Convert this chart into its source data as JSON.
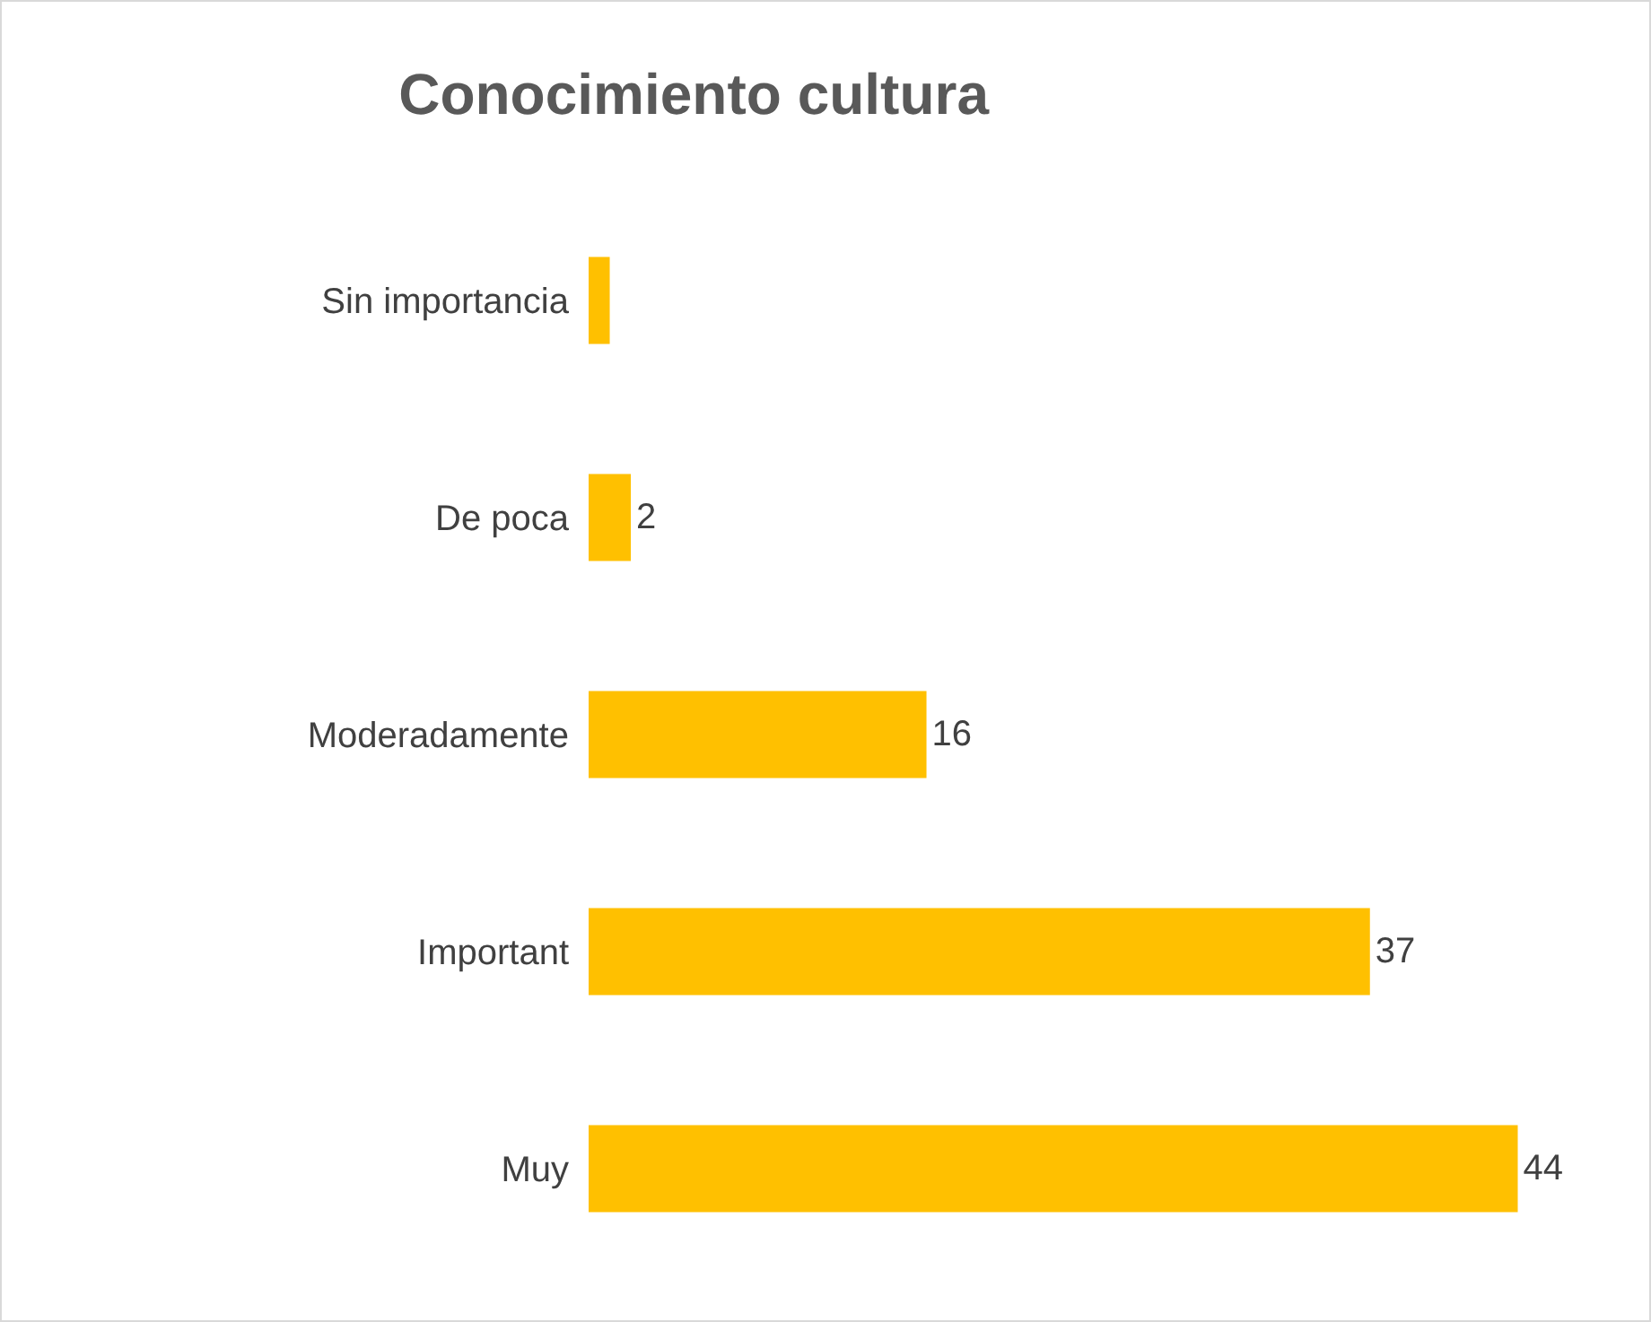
{
  "chart_data": {
    "type": "bar",
    "title": "Conocimiento cultura",
    "orientation": "horizontal",
    "categories": [
      "Sin importancia",
      "De poca",
      "Moderadamente",
      "Important",
      "Muy"
    ],
    "values": [
      1,
      2,
      16,
      37,
      44
    ],
    "value_labels": [
      null,
      "2",
      "16",
      "37",
      "44"
    ],
    "color": "#ffc000",
    "grid": false,
    "tick_labels": "y"
  }
}
